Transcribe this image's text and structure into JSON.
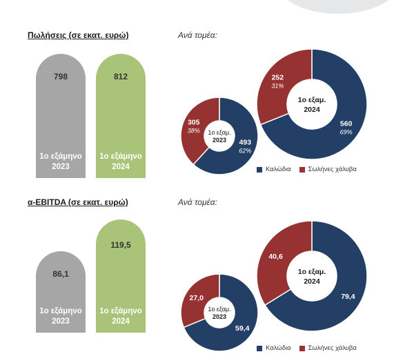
{
  "colors": {
    "bar_2023": "#a6a6a6",
    "bar_2024": "#a9c478",
    "kalodia": "#243f66",
    "swlines": "#973232",
    "deco": "#e6e7e9"
  },
  "chart_data": [
    {
      "type": "bar",
      "title": "Πωλήσεις (σε εκατ. ευρώ)",
      "categories": [
        "1ο εξάμηνο 2023",
        "1ο εξάμηνο 2024"
      ],
      "values": [
        798,
        812
      ],
      "value_labels": [
        "798",
        "812"
      ],
      "cat_lines": [
        [
          "1ο εξάμηνο",
          "2023"
        ],
        [
          "1ο εξάμηνο",
          "2024"
        ]
      ]
    },
    {
      "type": "pie",
      "title": "Ανά τομέα:",
      "legend": [
        "Καλώδια",
        "Σωλήνες χάλυβα"
      ],
      "legend_placement": "bottom",
      "donuts": [
        {
          "center_label": [
            "1ο εξαμ.",
            "2023"
          ],
          "slices": [
            {
              "name": "Καλώδια",
              "value": 493,
              "label": "493",
              "pct": "62%"
            },
            {
              "name": "Σωλήνες χάλυβα",
              "value": 305,
              "label": "305",
              "pct": "38%"
            }
          ]
        },
        {
          "center_label": [
            "1ο εξαμ.",
            "2024"
          ],
          "slices": [
            {
              "name": "Καλώδια",
              "value": 560,
              "label": "560",
              "pct": "69%"
            },
            {
              "name": "Σωλήνες χάλυβα",
              "value": 252,
              "label": "252",
              "pct": "31%"
            }
          ]
        }
      ]
    },
    {
      "type": "bar",
      "title": "α-EBITDA (σε εκατ. ευρώ)",
      "categories": [
        "1ο εξάμηνο 2023",
        "1ο εξάμηνο 2024"
      ],
      "values": [
        86.1,
        119.5
      ],
      "value_labels": [
        "86,1",
        "119,5"
      ],
      "cat_lines": [
        [
          "1ο εξάμηνο",
          "2023"
        ],
        [
          "1ο εξάμηνο",
          "2024"
        ]
      ]
    },
    {
      "type": "pie",
      "title": "Ανά τομέα:",
      "legend": [
        "Καλώδια",
        "Σωλήνες χάλυβα"
      ],
      "legend_placement": "bottom",
      "donuts": [
        {
          "center_label": [
            "1ο εξαμ.",
            "2023"
          ],
          "slices": [
            {
              "name": "Καλώδια",
              "value": 59.4,
              "label": "59,4",
              "pct": ""
            },
            {
              "name": "Σωλήνες χάλυβα",
              "value": 27.0,
              "label": "27,0",
              "pct": ""
            }
          ]
        },
        {
          "center_label": [
            "1ο εξαμ.",
            "2024"
          ],
          "slices": [
            {
              "name": "Καλώδια",
              "value": 79.4,
              "label": "79,4",
              "pct": ""
            },
            {
              "name": "Σωλήνες χάλυβα",
              "value": 40.6,
              "label": "40,6",
              "pct": ""
            }
          ]
        }
      ]
    }
  ]
}
